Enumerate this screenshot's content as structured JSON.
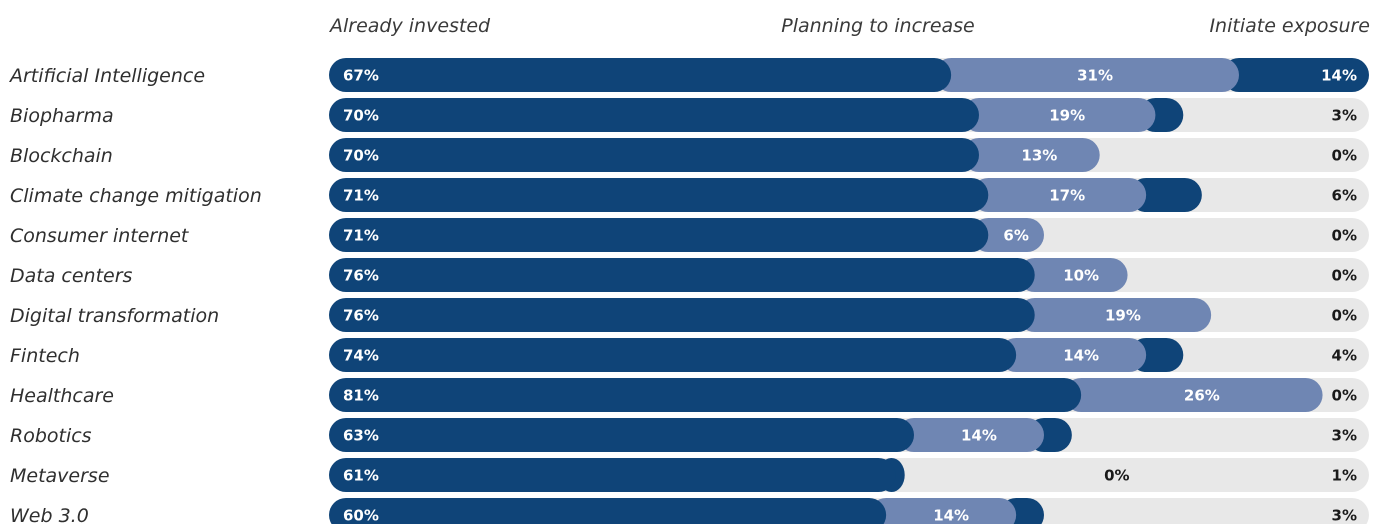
{
  "chart_data": {
    "type": "bar",
    "orientation": "horizontal",
    "stacked": true,
    "column_headers": [
      "Already invested",
      "Planning to increase",
      "Initiate exposure"
    ],
    "categories": [
      "Artificial Intelligence",
      "Biopharma",
      "Blockchain",
      "Climate change mitigation",
      "Consumer internet",
      "Data centers",
      "Digital transformation",
      "Fintech",
      "Healthcare",
      "Robotics",
      "Metaverse",
      "Web 3.0"
    ],
    "series": [
      {
        "name": "Already invested",
        "values": [
          67,
          70,
          70,
          71,
          71,
          76,
          76,
          74,
          81,
          63,
          61,
          60
        ]
      },
      {
        "name": "Planning to increase",
        "values": [
          31,
          19,
          13,
          17,
          6,
          10,
          19,
          14,
          26,
          14,
          0,
          14
        ]
      },
      {
        "name": "Initiate exposure",
        "values": [
          14,
          3,
          0,
          6,
          0,
          0,
          0,
          4,
          0,
          3,
          1,
          3
        ]
      }
    ],
    "unit": "%",
    "colors": {
      "already_invested": "#0f4478",
      "planning_to_increase": "#6f86b3",
      "initiate_exposure": "#0f4478",
      "track": "#e8e8e8",
      "label_dark": "#1a1a1a",
      "label_light": "#ffffff"
    }
  }
}
